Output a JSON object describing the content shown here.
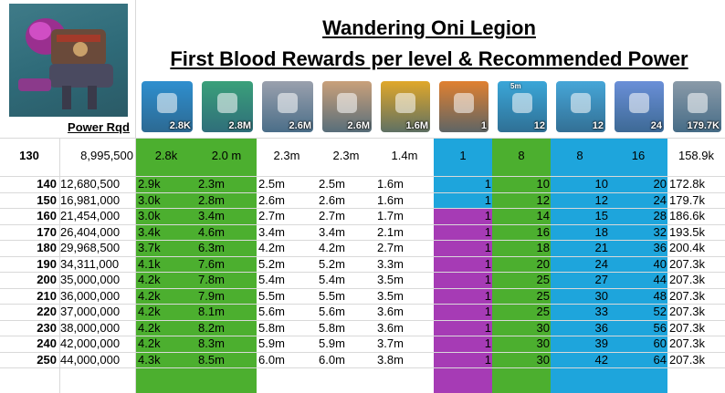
{
  "title_line1": "Wandering Oni Legion",
  "title_line2": "First Blood Rewards per level & Recommended Power",
  "power_header": "Power Rqd",
  "colors": {
    "green": "#4caf2f",
    "blue": "#1ea5dc",
    "purple": "#a63bb5",
    "white": "#ffffff"
  },
  "icons": [
    {
      "name": "speedup-rocket-icon",
      "badge": "2.8K",
      "top": ""
    },
    {
      "name": "exp-book-icon",
      "badge": "2.8M",
      "top": ""
    },
    {
      "name": "iron-ingot-icon",
      "badge": "2.6M",
      "top": ""
    },
    {
      "name": "bread-loaf-icon",
      "badge": "2.6M",
      "top": ""
    },
    {
      "name": "gold-coin-icon",
      "badge": "1.6M",
      "top": ""
    },
    {
      "name": "hero-portrait-icon",
      "badge": "1",
      "top": ""
    },
    {
      "name": "speedup-5m-icon",
      "badge": "12",
      "top": "5m"
    },
    {
      "name": "gold-chest-icon",
      "badge": "12",
      "top": ""
    },
    {
      "name": "purple-chest-icon",
      "badge": "24",
      "top": ""
    },
    {
      "name": "crystal-shard-icon",
      "badge": "179.7K",
      "top": ""
    }
  ],
  "header_row": {
    "level": "130",
    "power": "8,995,500",
    "vals": [
      "2.8k",
      "2.0 m",
      "2.3m",
      "2.3m",
      "1.4m",
      "1",
      "8",
      "8",
      "16",
      "158.9k"
    ]
  },
  "rows": [
    {
      "level": "140",
      "power": "12,680,500",
      "vals": [
        "2.9k",
        "2.3m",
        "2.5m",
        "2.5m",
        "1.6m",
        "1",
        "10",
        "10",
        "20",
        "172.8k"
      ]
    },
    {
      "level": "150",
      "power": "16,981,000",
      "vals": [
        "3.0k",
        "2.8m",
        "2.6m",
        "2.6m",
        "1.6m",
        "1",
        "12",
        "12",
        "24",
        "179.7k"
      ]
    },
    {
      "level": "160",
      "power": "21,454,000",
      "vals": [
        "3.0k",
        "3.4m",
        "2.7m",
        "2.7m",
        "1.7m",
        "1",
        "14",
        "15",
        "28",
        "186.6k"
      ]
    },
    {
      "level": "170",
      "power": "26,404,000",
      "vals": [
        "3.4k",
        "4.6m",
        "3.4m",
        "3.4m",
        "2.1m",
        "1",
        "16",
        "18",
        "32",
        "193.5k"
      ]
    },
    {
      "level": "180",
      "power": "29,968,500",
      "vals": [
        "3.7k",
        "6.3m",
        "4.2m",
        "4.2m",
        "2.7m",
        "1",
        "18",
        "21",
        "36",
        "200.4k"
      ]
    },
    {
      "level": "190",
      "power": "34,311,000",
      "vals": [
        "4.1k",
        "7.6m",
        "5.2m",
        "5.2m",
        "3.3m",
        "1",
        "20",
        "24",
        "40",
        "207.3k"
      ]
    },
    {
      "level": "200",
      "power": "35,000,000",
      "vals": [
        "4.2k",
        "7.8m",
        "5.4m",
        "5.4m",
        "3.5m",
        "1",
        "25",
        "27",
        "44",
        "207.3k"
      ]
    },
    {
      "level": "210",
      "power": "36,000,000",
      "vals": [
        "4.2k",
        "7.9m",
        "5.5m",
        "5.5m",
        "3.5m",
        "1",
        "25",
        "30",
        "48",
        "207.3k"
      ]
    },
    {
      "level": "220",
      "power": "37,000,000",
      "vals": [
        "4.2k",
        "8.1m",
        "5.6m",
        "5.6m",
        "3.6m",
        "1",
        "25",
        "33",
        "52",
        "207.3k"
      ]
    },
    {
      "level": "230",
      "power": "38,000,000",
      "vals": [
        "4.2k",
        "8.2m",
        "5.8m",
        "5.8m",
        "3.6m",
        "1",
        "30",
        "36",
        "56",
        "207.3k"
      ]
    },
    {
      "level": "240",
      "power": "42,000,000",
      "vals": [
        "4.2k",
        "8.3m",
        "5.9m",
        "5.9m",
        "3.7m",
        "1",
        "30",
        "39",
        "60",
        "207.3k"
      ]
    },
    {
      "level": "250",
      "power": "44,000,000",
      "vals": [
        "4.3k",
        "8.5m",
        "6.0m",
        "6.0m",
        "3.8m",
        "1",
        "30",
        "42",
        "64",
        "207.3k"
      ]
    }
  ]
}
